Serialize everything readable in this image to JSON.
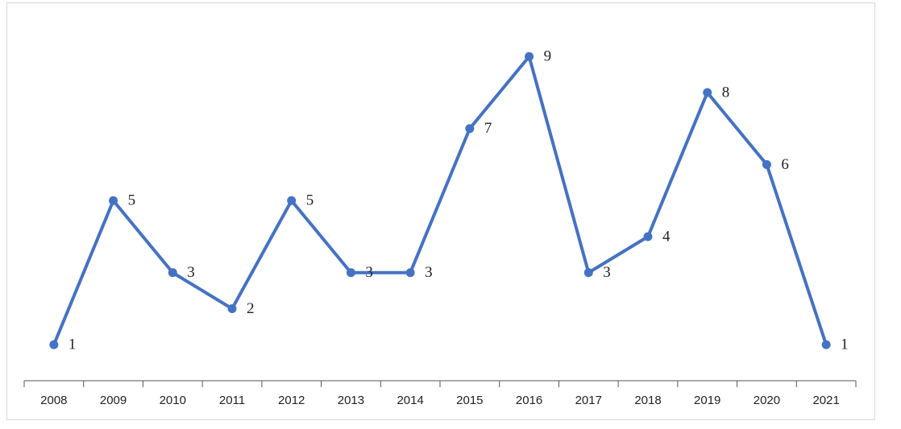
{
  "chart_data": {
    "type": "line",
    "categories": [
      "2008",
      "2009",
      "2010",
      "2011",
      "2012",
      "2013",
      "2014",
      "2015",
      "2016",
      "2017",
      "2018",
      "2019",
      "2020",
      "2021"
    ],
    "values": [
      1,
      5,
      3,
      2,
      5,
      3,
      3,
      7,
      9,
      3,
      4,
      8,
      6,
      1
    ],
    "color": "#4472c4"
  }
}
